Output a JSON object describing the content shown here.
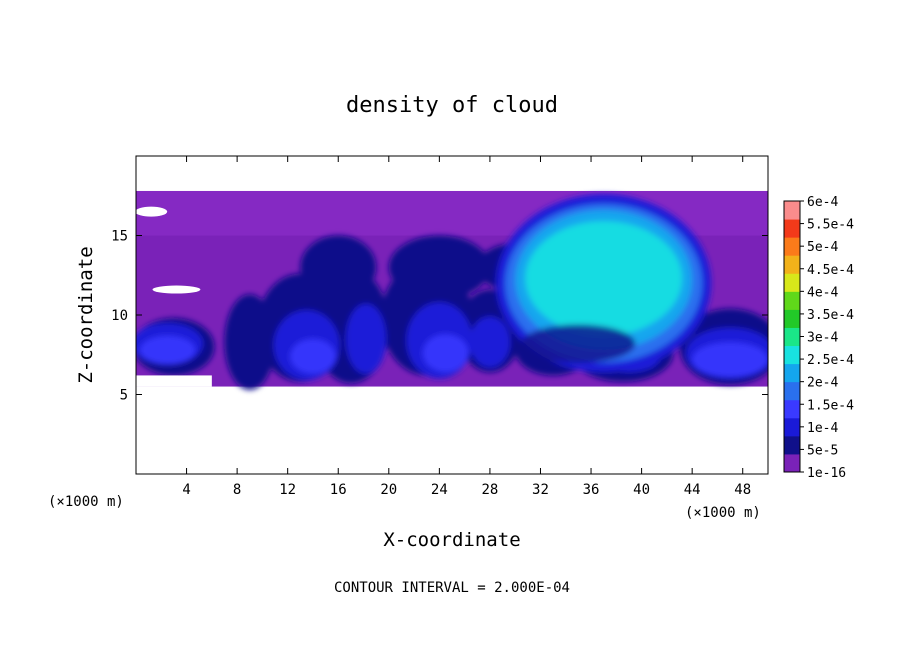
{
  "chart_data": {
    "type": "heatmap",
    "title": "density of cloud",
    "xlabel": "X-coordinate",
    "ylabel": "Z-coordinate",
    "x_unit": "(×1000 m)",
    "y_unit": "(×1000 m)",
    "xlim": [
      0,
      50
    ],
    "ylim": [
      0,
      20
    ],
    "x_ticks": [
      "4",
      "8",
      "12",
      "16",
      "20",
      "24",
      "28",
      "32",
      "36",
      "40",
      "44",
      "48"
    ],
    "y_ticks": [
      "5",
      "10",
      "15"
    ],
    "grid": false,
    "colorbar": {
      "position": "right",
      "levels": [
        "1e-16",
        "5e-5",
        "1e-4",
        "1.5e-4",
        "2e-4",
        "2.5e-4",
        "3e-4",
        "3.5e-4",
        "4e-4",
        "4.5e-4",
        "5e-4",
        "5.5e-4",
        "6e-4"
      ],
      "colors": [
        "#7a22b8",
        "#10108a",
        "#1a1ad8",
        "#3a3aff",
        "#2a70ee",
        "#14a6ee",
        "#18e2e0",
        "#1ae688",
        "#22c928",
        "#60d81a",
        "#d8e81a",
        "#f2b21a",
        "#fb7b1a",
        "#f33a1a",
        "#fa8c8c"
      ]
    },
    "cloud_layer_z": [
      5.5,
      17.8
    ],
    "features": [
      {
        "x_center": 37,
        "z_center": 12,
        "max_level": "2e-4"
      },
      {
        "x_center": 3,
        "z_center": 8,
        "max_level": "1e-4"
      },
      {
        "x_center": 15,
        "z_center": 8.5,
        "max_level": "1e-4"
      }
    ],
    "annotation": "CONTOUR INTERVAL = 2.000E-04"
  }
}
